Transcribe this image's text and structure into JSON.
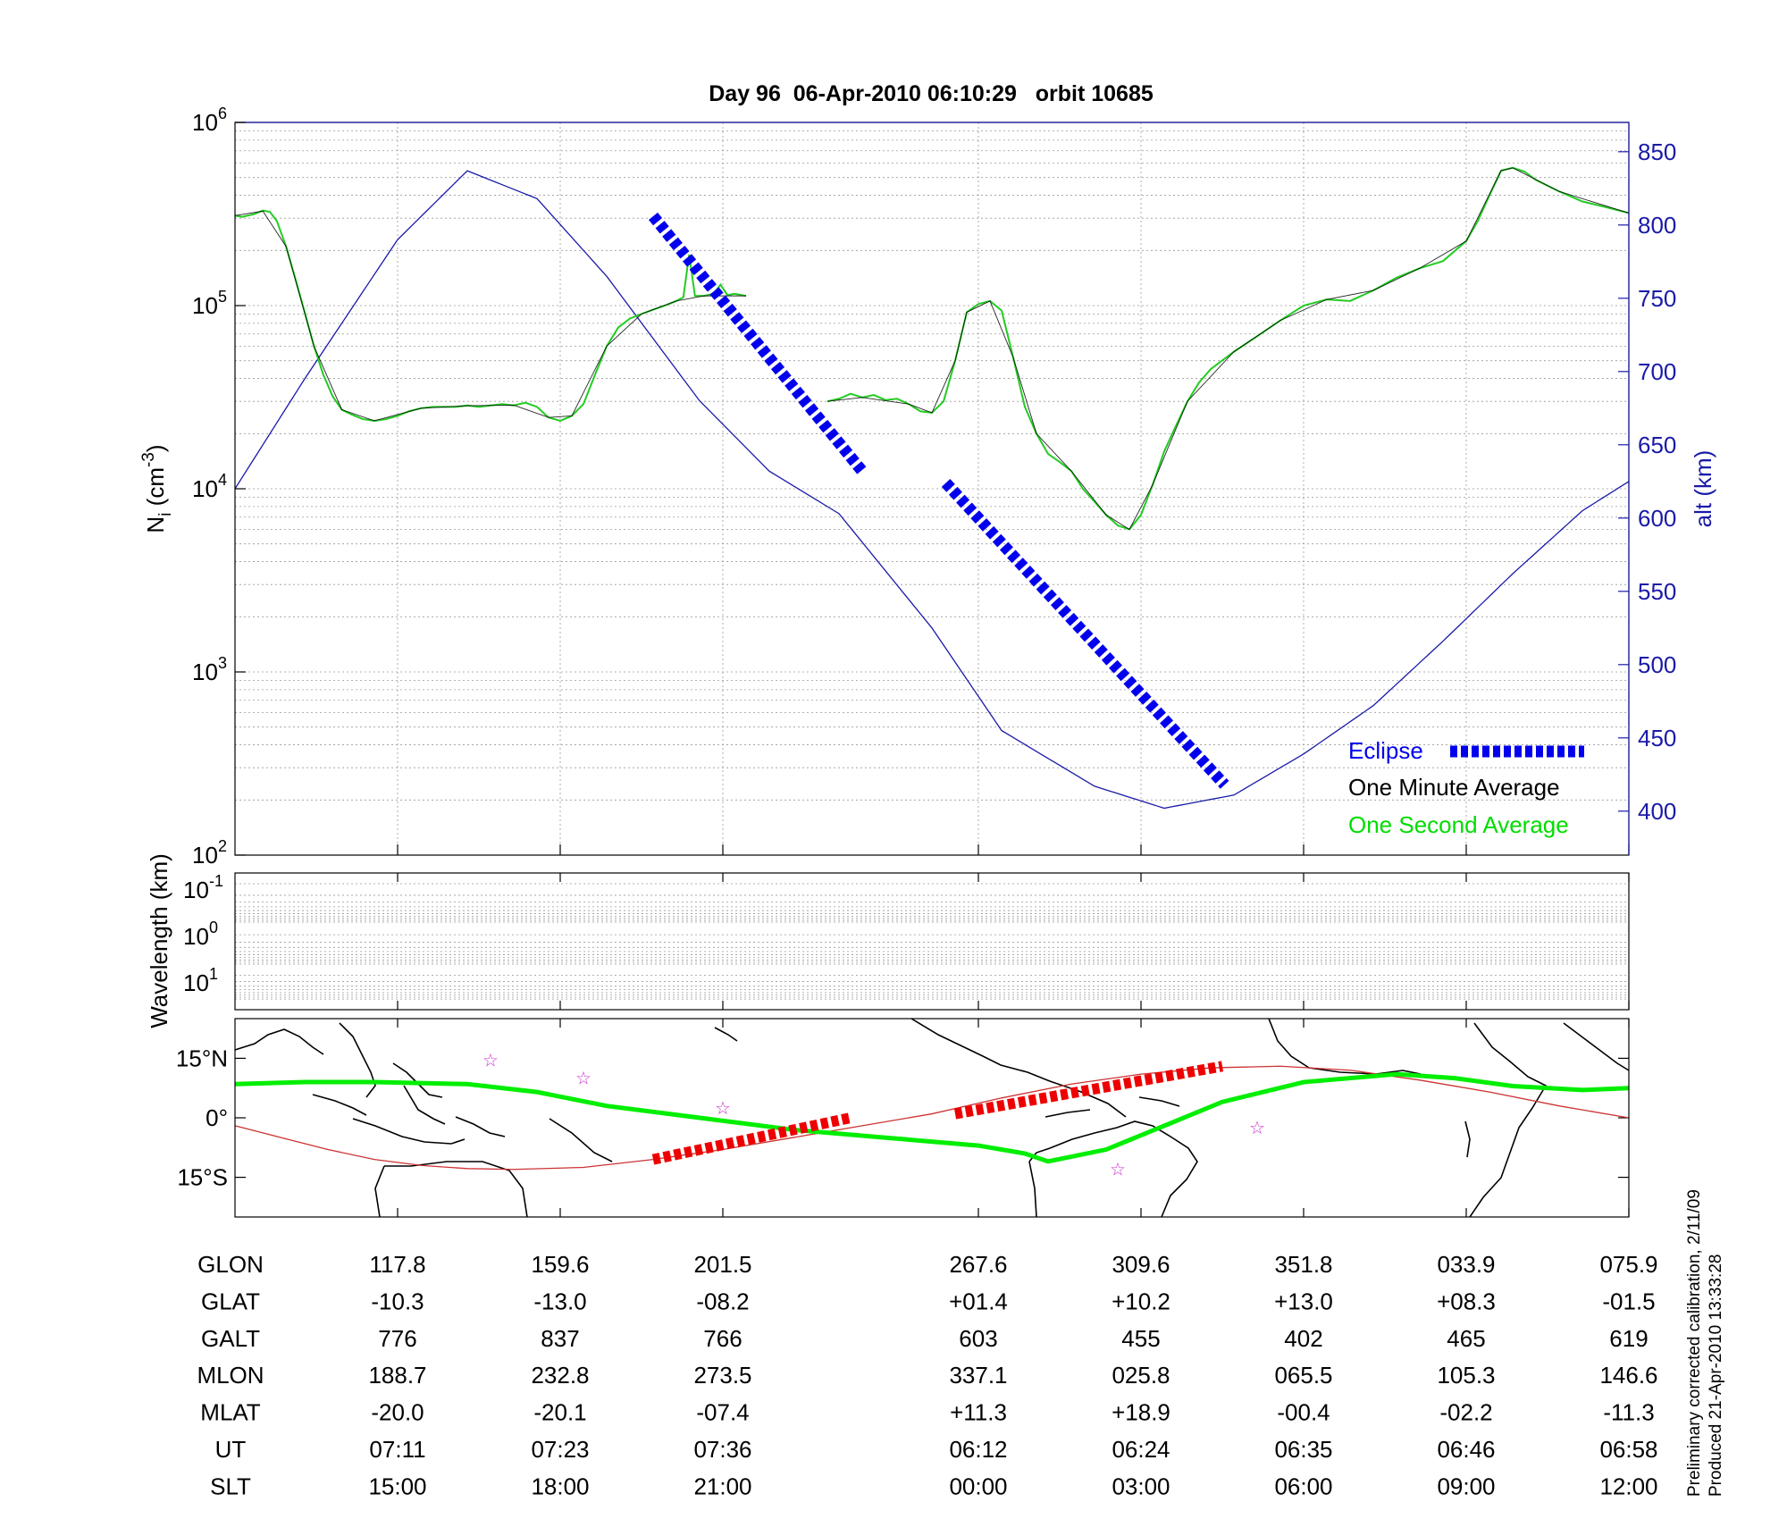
{
  "figure_title": "Day 96  06-Apr-2010 06:10:29   orbit 10685",
  "chart_data": [
    {
      "type": "line",
      "panel": "density",
      "ylabel": "N_i (cm^-3)",
      "ylabel_right": "alt (km)",
      "y_scale": "log",
      "ylim": [
        100,
        1000000
      ],
      "y_ticks": [
        {
          "base": "10",
          "exp": "2",
          "value": 100
        },
        {
          "base": "10",
          "exp": "3",
          "value": 1000
        },
        {
          "base": "10",
          "exp": "4",
          "value": 10000
        },
        {
          "base": "10",
          "exp": "5",
          "value": 100000
        },
        {
          "base": "10",
          "exp": "6",
          "value": 1000000
        }
      ],
      "y2lim": [
        370,
        870
      ],
      "y2_ticks": [
        "400",
        "450",
        "500",
        "550",
        "600",
        "650",
        "700",
        "750",
        "800",
        "850"
      ],
      "grid": true,
      "legend_position": "bottom-right",
      "legend": [
        {
          "label": "Eclipse",
          "color": "#0000ee"
        },
        {
          "label": "One Minute Average",
          "color": "#000000"
        },
        {
          "label": "One Second Average",
          "color": "#00dd00"
        }
      ],
      "colors": {
        "density": "#00aa00",
        "altitude": "#1a1aa8",
        "eclipse": "#0000ee"
      },
      "series": [
        {
          "name": "One Second Average",
          "segments": [
            [
              [
                0,
                310000
              ],
              [
                0.3,
                305000
              ],
              [
                0.8,
                315000
              ],
              [
                1.2,
                330000
              ],
              [
                1.5,
                325000
              ],
              [
                1.8,
                290000
              ],
              [
                2.2,
                210000
              ],
              [
                2.6,
                140000
              ],
              [
                3,
                92000
              ],
              [
                3.4,
                60000
              ],
              [
                3.8,
                42000
              ],
              [
                4.2,
                32000
              ],
              [
                4.6,
                27000
              ],
              [
                5,
                25500
              ],
              [
                5.5,
                24000
              ],
              [
                6,
                23500
              ],
              [
                6.5,
                24000
              ],
              [
                7,
                25000
              ],
              [
                7.5,
                26500
              ],
              [
                8,
                27500
              ],
              [
                8.5,
                28000
              ],
              [
                9,
                28000
              ],
              [
                9.5,
                28000
              ],
              [
                10,
                28500
              ],
              [
                10.5,
                28000
              ],
              [
                11,
                28500
              ],
              [
                11.5,
                29000
              ],
              [
                12,
                28500
              ],
              [
                12.5,
                29500
              ],
              [
                13,
                28000
              ],
              [
                13.5,
                24500
              ],
              [
                14,
                23500
              ],
              [
                14.5,
                25000
              ],
              [
                15,
                29000
              ],
              [
                15.5,
                42000
              ],
              [
                16,
                60000
              ],
              [
                16.5,
                76000
              ],
              [
                17,
                85000
              ],
              [
                17.5,
                90000
              ],
              [
                18,
                95000
              ],
              [
                18.5,
                100000
              ],
              [
                19,
                106000
              ],
              [
                19.3,
                111000
              ],
              [
                19.55,
                190000
              ],
              [
                19.8,
                113000
              ],
              [
                20.2,
                113000
              ],
              [
                20.6,
                116000
              ],
              [
                20.9,
                130000
              ],
              [
                21.2,
                114000
              ],
              [
                21.5,
                116000
              ],
              [
                22,
                113000
              ]
            ],
            [
              [
                25.5,
                30000
              ],
              [
                26,
                31000
              ],
              [
                26.5,
                33000
              ],
              [
                27,
                31500
              ],
              [
                27.5,
                32500
              ],
              [
                28,
                30500
              ],
              [
                28.5,
                31000
              ],
              [
                29,
                29000
              ],
              [
                29.5,
                26500
              ],
              [
                30,
                26000
              ],
              [
                30.5,
                30000
              ],
              [
                31,
                50000
              ],
              [
                31.5,
                92000
              ],
              [
                32,
                102000
              ],
              [
                32.5,
                106000
              ],
              [
                33,
                94000
              ],
              [
                33.5,
                52000
              ],
              [
                34,
                28000
              ],
              [
                34.5,
                20000
              ],
              [
                35,
                15500
              ],
              [
                35.5,
                14000
              ],
              [
                36,
                12500
              ],
              [
                36.5,
                10000
              ],
              [
                37,
                8500
              ],
              [
                37.5,
                7200
              ],
              [
                38,
                6300
              ],
              [
                38.5,
                6000
              ],
              [
                39,
                7200
              ],
              [
                39.5,
                10500
              ],
              [
                40,
                16000
              ],
              [
                40.5,
                22000
              ],
              [
                41,
                30000
              ],
              [
                41.5,
                38000
              ],
              [
                42,
                45000
              ],
              [
                43,
                56000
              ],
              [
                44,
                68000
              ],
              [
                45,
                83000
              ],
              [
                46,
                100000
              ],
              [
                47,
                108000
              ],
              [
                48,
                106000
              ],
              [
                49,
                121000
              ],
              [
                50,
                142000
              ],
              [
                51,
                160000
              ],
              [
                52,
                175000
              ],
              [
                53,
                225000
              ],
              [
                53.5,
                290000
              ],
              [
                54,
                400000
              ],
              [
                54.5,
                545000
              ],
              [
                55,
                565000
              ],
              [
                55.5,
                540000
              ],
              [
                56,
                485000
              ],
              [
                57,
                420000
              ],
              [
                58,
                370000
              ],
              [
                59,
                345000
              ],
              [
                60,
                320000
              ]
            ]
          ]
        },
        {
          "name": "One Minute Average",
          "segments": [
            [
              [
                0,
                310000
              ],
              [
                1.2,
                328000
              ],
              [
                2.2,
                210000
              ],
              [
                3.4,
                60000
              ],
              [
                4.6,
                27000
              ],
              [
                6,
                23500
              ],
              [
                8,
                27500
              ],
              [
                10,
                28400
              ],
              [
                12,
                28600
              ],
              [
                13.5,
                24500
              ],
              [
                14.5,
                25000
              ],
              [
                16,
                60000
              ],
              [
                17.5,
                90000
              ],
              [
                19,
                106000
              ],
              [
                20.2,
                113000
              ],
              [
                22,
                113000
              ]
            ],
            [
              [
                25.5,
                30000
              ],
              [
                27,
                31500
              ],
              [
                29,
                29000
              ],
              [
                30,
                26000
              ],
              [
                31,
                50000
              ],
              [
                31.5,
                92000
              ],
              [
                32.5,
                106000
              ],
              [
                33.5,
                52000
              ],
              [
                34.5,
                20000
              ],
              [
                36,
                12500
              ],
              [
                37.5,
                7200
              ],
              [
                38.5,
                6000
              ],
              [
                39.5,
                10500
              ],
              [
                41,
                30000
              ],
              [
                43,
                56000
              ],
              [
                45,
                83000
              ],
              [
                47,
                108000
              ],
              [
                49,
                121000
              ],
              [
                51,
                160000
              ],
              [
                53,
                225000
              ],
              [
                54.5,
                545000
              ],
              [
                55,
                565000
              ],
              [
                57,
                420000
              ],
              [
                60,
                320000
              ]
            ]
          ]
        },
        {
          "name": "alt (km)",
          "y_axis": "right",
          "x": [
            0,
            3,
            7,
            10,
            13,
            16,
            20,
            23,
            26,
            30,
            33,
            37,
            40,
            43,
            46,
            49,
            52,
            55,
            58,
            60
          ],
          "values": [
            620,
            695,
            790,
            837,
            818,
            765,
            680,
            632,
            603,
            525,
            455,
            417,
            402,
            411,
            439,
            472,
            516,
            562,
            605,
            625
          ]
        }
      ],
      "eclipse_segments": [
        {
          "x": [
            18,
            27
          ],
          "alt_km": [
            806,
            632
          ]
        },
        {
          "x": [
            30.6,
            42.6
          ],
          "alt_km": [
            624,
            418
          ]
        }
      ]
    },
    {
      "type": "heatmap",
      "panel": "wavelength",
      "ylabel": "Wavelength (km)",
      "y_ticks": [
        {
          "base": "10",
          "exp": "-1"
        },
        {
          "base": "10",
          "exp": "0"
        },
        {
          "base": "10",
          "exp": "1"
        }
      ],
      "grid": true
    },
    {
      "type": "line",
      "panel": "map",
      "y_ticks": [
        "15°N",
        "0°",
        "15°S"
      ],
      "ylim": [
        -25,
        25
      ],
      "colors": {
        "dip_equator": "#00ee00",
        "orbit_track": "#cc3333",
        "eclipse": "#ee0000",
        "stations": "#cc33cc"
      },
      "series": [
        {
          "name": "dip-equator",
          "x": [
            0,
            3,
            6,
            10,
            13,
            16,
            20,
            24,
            28,
            32,
            34,
            35,
            37.5,
            40,
            42.5,
            46,
            50,
            52.5,
            55,
            58,
            60
          ],
          "values": [
            8.5,
            9,
            9,
            8.5,
            6.5,
            3,
            0,
            -3,
            -5,
            -7,
            -9,
            -11,
            -8,
            -2,
            4,
            9,
            11,
            10,
            8,
            7,
            7.5
          ]
        },
        {
          "name": "orbit-track",
          "x": [
            0,
            2,
            4,
            6,
            8,
            10,
            12,
            15,
            18,
            21,
            24,
            27,
            30,
            33,
            36,
            39,
            42,
            45,
            48,
            51,
            54,
            57,
            60
          ],
          "values": [
            -2,
            -5,
            -8,
            -10.5,
            -12,
            -12.8,
            -13,
            -12.5,
            -10.5,
            -8,
            -5,
            -2,
            1,
            5,
            8.5,
            11,
            12.6,
            13,
            12,
            9.5,
            6.5,
            3,
            0
          ]
        },
        {
          "name": "eclipse-track-1",
          "x": [
            18,
            26.5
          ],
          "values": [
            -10.5,
            0
          ]
        },
        {
          "name": "eclipse-track-2",
          "x": [
            31,
            42.5
          ],
          "values": [
            1,
            13
          ]
        }
      ],
      "markers": [
        {
          "x": 11,
          "y": 14.5
        },
        {
          "x": 15,
          "y": 10
        },
        {
          "x": 21,
          "y": 2.5
        },
        {
          "x": 38,
          "y": -13
        },
        {
          "x": 44,
          "y": -2.5
        }
      ]
    }
  ],
  "table": {
    "columns": [
      {
        "x": 7
      },
      {
        "x": 14
      },
      {
        "x": 21
      },
      {
        "x": 32
      },
      {
        "x": 39
      },
      {
        "x": 46
      },
      {
        "x": 53
      },
      {
        "x": 60
      }
    ],
    "rows": [
      {
        "label": "GLON",
        "values": [
          "117.8",
          "159.6",
          "201.5",
          "267.6",
          "309.6",
          "351.8",
          "033.9",
          "075.9"
        ]
      },
      {
        "label": "GLAT",
        "values": [
          "-10.3",
          "-13.0",
          "-08.2",
          "+01.4",
          "+10.2",
          "+13.0",
          "+08.3",
          "-01.5"
        ]
      },
      {
        "label": "GALT",
        "values": [
          "776",
          "837",
          "766",
          "603",
          "455",
          "402",
          "465",
          "619"
        ]
      },
      {
        "label": "MLON",
        "values": [
          "188.7",
          "232.8",
          "273.5",
          "337.1",
          "025.8",
          "065.5",
          "105.3",
          "146.6"
        ]
      },
      {
        "label": "MLAT",
        "values": [
          "-20.0",
          "-20.1",
          "-07.4",
          "+11.3",
          "+18.9",
          "-00.4",
          "-02.2",
          "-11.3"
        ]
      },
      {
        "label": "UT",
        "values": [
          "07:11",
          "07:23",
          "07:36",
          "06:12",
          "06:24",
          "06:35",
          "06:46",
          "06:58"
        ]
      },
      {
        "label": "SLT",
        "values": [
          "15:00",
          "18:00",
          "21:00",
          "00:00",
          "03:00",
          "06:00",
          "09:00",
          "12:00"
        ]
      }
    ]
  },
  "footnote": {
    "line1": "Preliminary corrected calibration, 2/11/09",
    "line2": "Produced 21-Apr-2010 13:33:28"
  }
}
